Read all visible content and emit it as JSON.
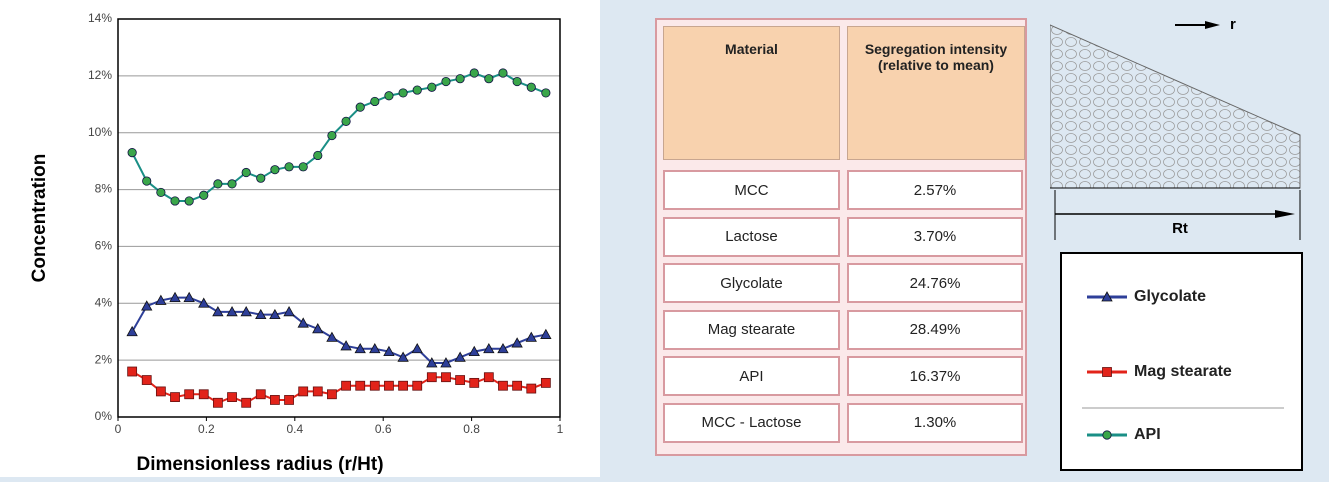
{
  "chart_data": {
    "type": "line",
    "x_label": "Dimensionless radius (r/Ht)",
    "y_label": "Concentration",
    "x": [
      0.032,
      0.065,
      0.097,
      0.129,
      0.161,
      0.194,
      0.226,
      0.258,
      0.29,
      0.323,
      0.355,
      0.387,
      0.419,
      0.452,
      0.484,
      0.516,
      0.548,
      0.581,
      0.613,
      0.645,
      0.677,
      0.71,
      0.742,
      0.774,
      0.806,
      0.839,
      0.871,
      0.903,
      0.935,
      0.968
    ],
    "series": [
      {
        "name": "Glycolate",
        "color": "#2e3f99",
        "marker": "triangle",
        "values": [
          3.0,
          3.9,
          4.1,
          4.2,
          4.2,
          4.0,
          3.7,
          3.7,
          3.7,
          3.6,
          3.6,
          3.7,
          3.3,
          3.1,
          2.8,
          2.5,
          2.4,
          2.4,
          2.3,
          2.1,
          2.4,
          1.9,
          1.9,
          2.1,
          2.3,
          2.4,
          2.4,
          2.6,
          2.8,
          2.9
        ]
      },
      {
        "name": "Mag stearate",
        "color": "#e2231a",
        "marker": "square",
        "values": [
          1.6,
          1.3,
          0.9,
          0.7,
          0.8,
          0.8,
          0.5,
          0.7,
          0.5,
          0.8,
          0.6,
          0.6,
          0.9,
          0.9,
          0.8,
          1.1,
          1.1,
          1.1,
          1.1,
          1.1,
          1.1,
          1.4,
          1.4,
          1.3,
          1.2,
          1.4,
          1.1,
          1.1,
          1.0,
          1.2
        ]
      },
      {
        "name": "API",
        "color": "#1a8f86",
        "marker": "circle",
        "values": [
          9.3,
          8.3,
          7.9,
          7.6,
          7.6,
          7.8,
          8.2,
          8.2,
          8.6,
          8.4,
          8.7,
          8.8,
          8.8,
          9.2,
          9.9,
          10.4,
          10.9,
          11.1,
          11.3,
          11.4,
          11.5,
          11.6,
          11.8,
          11.9,
          12.1,
          11.9,
          12.1,
          11.8,
          11.6,
          11.4
        ]
      }
    ],
    "xlim": [
      0,
      1
    ],
    "xticks": [
      0,
      0.2,
      0.4,
      0.6,
      0.8,
      1
    ],
    "ylim": [
      0,
      14
    ],
    "yticks": [
      {
        "value": 0,
        "label": "0%"
      },
      {
        "value": 2,
        "label": "2%"
      },
      {
        "value": 4,
        "label": "4%"
      },
      {
        "value": 6,
        "label": "6%"
      },
      {
        "value": 8,
        "label": "8%"
      },
      {
        "value": 10,
        "label": "10%"
      },
      {
        "value": 12,
        "label": "12%"
      },
      {
        "value": 14,
        "label": "14%"
      }
    ],
    "grid": true
  },
  "table": {
    "header": [
      "Material",
      "Segregation intensity (relative to mean)"
    ],
    "rows": [
      [
        "MCC",
        "2.57%"
      ],
      [
        "Lactose",
        "3.70%"
      ],
      [
        "Glycolate",
        "24.76%"
      ],
      [
        "Mag stearate",
        "28.49%"
      ],
      [
        "API",
        "16.37%"
      ],
      [
        "MCC - Lactose",
        "1.30%"
      ]
    ]
  },
  "diagram": {
    "r_label": "r",
    "rt_label": "Rt"
  }
}
